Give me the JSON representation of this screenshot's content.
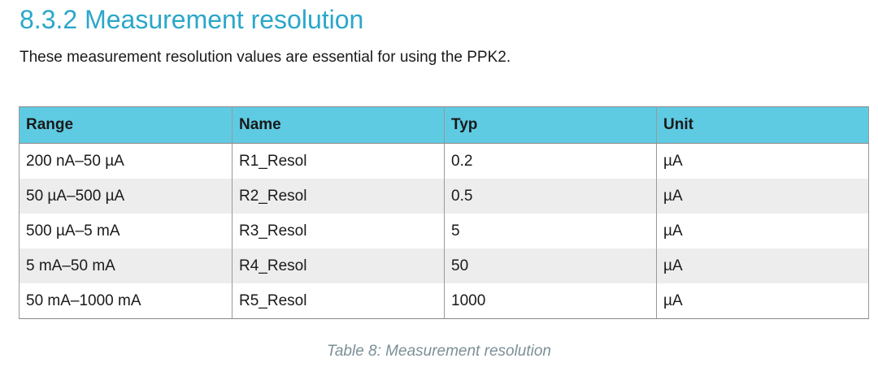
{
  "section": {
    "heading": "8.3.2 Measurement resolution",
    "intro": "These measurement resolution values are essential for using the PPK2."
  },
  "table": {
    "headers": [
      "Range",
      "Name",
      "Typ",
      "Unit"
    ],
    "rows": [
      [
        "200 nA–50 µA",
        "R1_Resol",
        "0.2",
        "µA"
      ],
      [
        "50 µA–500 µA",
        "R2_Resol",
        "0.5",
        "µA"
      ],
      [
        "500 µA–5 mA",
        "R3_Resol",
        "5",
        "µA"
      ],
      [
        "5 mA–50 mA",
        "R4_Resol",
        "50",
        "µA"
      ],
      [
        "50 mA–1000 mA",
        "R5_Resol",
        "1000",
        "µA"
      ]
    ],
    "caption": "Table 8: Measurement resolution"
  },
  "colors": {
    "heading": "#2ba7c9",
    "header_fill": "#5ecbe3",
    "stripe_fill": "#ededed",
    "caption": "#7c8f97"
  }
}
